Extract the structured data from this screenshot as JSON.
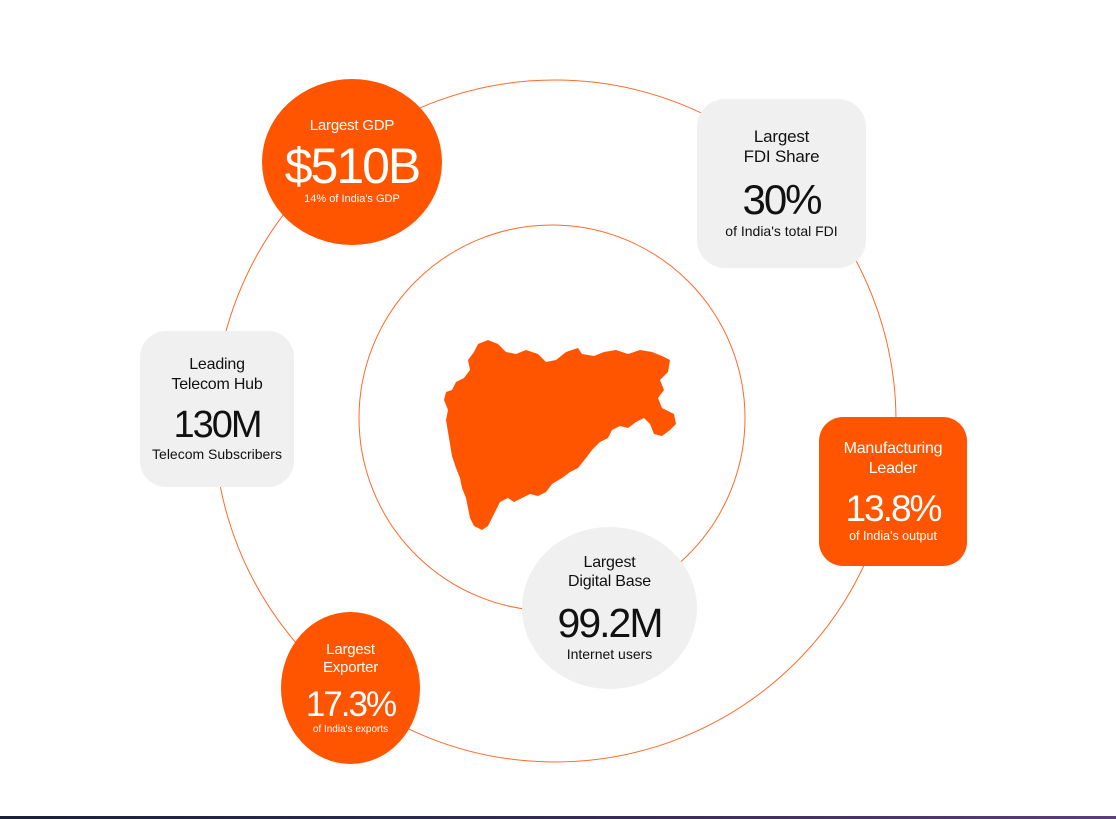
{
  "colors": {
    "accent": "#ff5500",
    "card_gray": "#f0f0f0",
    "ring": "#ff6a2b",
    "text_dark": "#111111"
  },
  "center_map": {
    "icon": "maharashtra-map-icon"
  },
  "stats": {
    "gdp": {
      "label": "Largest GDP",
      "value": "$510B",
      "sub": "14% of India's GDP"
    },
    "fdi": {
      "label_line1": "Largest",
      "label_line2": "FDI Share",
      "value": "30%",
      "sub": "of India's total FDI"
    },
    "telecom": {
      "label_line1": "Leading",
      "label_line2": "Telecom Hub",
      "value": "130M",
      "sub": "Telecom Subscribers"
    },
    "manufacturing": {
      "label_line1": "Manufacturing",
      "label_line2": "Leader",
      "value": "13.8%",
      "sub": "of India's output"
    },
    "digital": {
      "label_line1": "Largest",
      "label_line2": "Digital Base",
      "value": "99.2M",
      "sub": "Internet users"
    },
    "exporter": {
      "label_line1": "Largest",
      "label_line2": "Exporter",
      "value": "17.3%",
      "sub": "of India's exports"
    }
  }
}
